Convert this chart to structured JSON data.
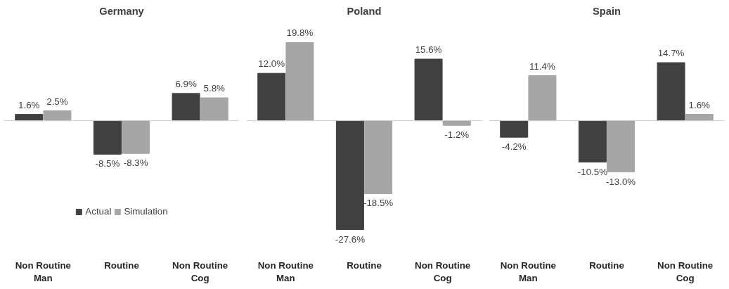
{
  "chart_data": [
    {
      "type": "bar",
      "title": "Germany",
      "categories": [
        "Non Routine\nMan",
        "Routine",
        "Non Routine\nCog"
      ],
      "series": [
        {
          "name": "Actual",
          "color": "#404040",
          "values": [
            1.6,
            -8.5,
            6.9
          ],
          "value_labels": [
            "1.6%",
            "-8.5%",
            "6.9%"
          ]
        },
        {
          "name": "Simulation",
          "color": "#a6a6a6",
          "values": [
            2.5,
            -8.3,
            5.8
          ],
          "value_labels": [
            "2.5%",
            "-8.3%",
            "5.8%"
          ]
        }
      ],
      "tick_labels": "x",
      "legend": "bottom"
    },
    {
      "type": "bar",
      "title": "Poland",
      "categories": [
        "Non Routine\nMan",
        "Routine",
        "Non Routine\nCog"
      ],
      "series": [
        {
          "color": "#404040",
          "values": [
            12.0,
            -27.6,
            15.6
          ],
          "value_labels": [
            "12.0%",
            "-27.6%",
            "15.6%"
          ]
        },
        {
          "color": "#a6a6a6",
          "values": [
            19.8,
            -18.5,
            -1.2
          ],
          "value_labels": [
            "19.8%",
            "-18.5%",
            "-1.2%"
          ]
        }
      ],
      "tick_labels": "x"
    },
    {
      "type": "bar",
      "title": "Spain",
      "categories": [
        "Non Routine\nMan",
        "Routine",
        "Non Routine\nCog"
      ],
      "series": [
        {
          "color": "#404040",
          "values": [
            -4.2,
            -10.5,
            14.7
          ],
          "value_labels": [
            "-4.2%",
            "-10.5%",
            "14.7%"
          ]
        },
        {
          "color": "#a6a6a6",
          "values": [
            11.4,
            -13.0,
            1.6
          ],
          "value_labels": [
            "11.4%",
            "-13.0%",
            "1.6%"
          ]
        }
      ],
      "tick_labels": "x"
    }
  ]
}
